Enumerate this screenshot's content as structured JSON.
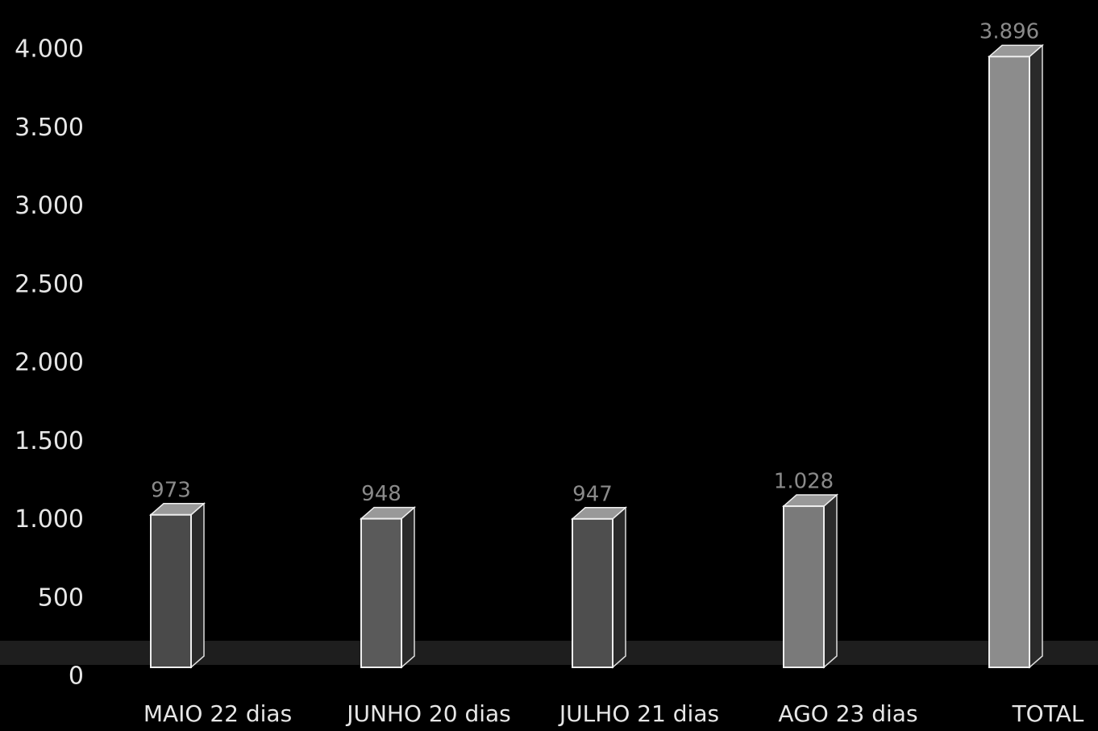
{
  "chart_data": {
    "type": "bar3d",
    "categories": [
      "MAIO 22 dias",
      "JUNHO 20 dias",
      "JULHO 21 dias",
      "AGO 23 dias",
      "TOTAL"
    ],
    "values": [
      973,
      948,
      947,
      1028,
      3896
    ],
    "value_labels": [
      "973",
      "948",
      "947",
      "1.028",
      "3.896"
    ],
    "colors": [
      "#4a4a4a",
      "#5a5a5a",
      "#4e4e4e",
      "#7a7a7a",
      "#8c8c8c"
    ],
    "ylim": [
      0,
      4000
    ],
    "yticks": [
      0,
      500,
      {
        "value": 1000,
        "label": "1.000"
      },
      {
        "value": 1500,
        "label": "1.500"
      },
      {
        "value": 2000,
        "label": "2.000"
      },
      {
        "value": 2500,
        "label": "2.500"
      },
      {
        "value": 3000,
        "label": "3.000"
      },
      {
        "value": 3500,
        "label": "3.500"
      },
      {
        "value": 4000,
        "label": "4.000"
      }
    ],
    "grid": false
  }
}
